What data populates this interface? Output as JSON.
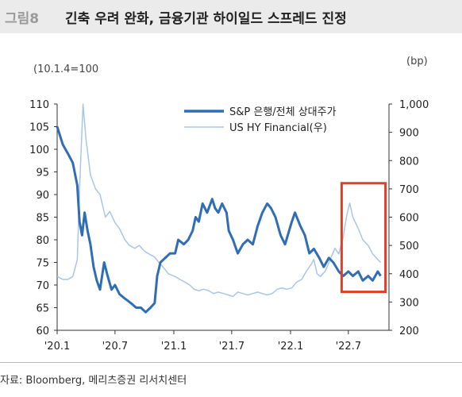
{
  "header": {
    "figure_no": "그림8",
    "title": "긴축 우려 완화, 금융기관 하이일드 스프레드 진정"
  },
  "units": {
    "left": "(10.1.4=100",
    "right": "(bp)"
  },
  "source": "자료: Bloomberg, 메리츠증권 리서치센터",
  "colors": {
    "primary": "#2f6db5",
    "secondary": "#a8c6e8",
    "highlight": "#e0402a"
  },
  "chart_data": {
    "type": "line",
    "x_ticks": [
      "'20.1",
      "'20.7",
      "'21.1",
      "'21.7",
      "'22.1",
      "'22.7"
    ],
    "y_left": {
      "ylim": [
        60,
        110
      ],
      "ticks": [
        "60",
        "65",
        "70",
        "75",
        "80",
        "85",
        "90",
        "95",
        "100",
        "105",
        "110"
      ]
    },
    "y_right": {
      "ylim": [
        200,
        1000
      ],
      "ticks": [
        "200",
        "300",
        "400",
        "500",
        "600",
        "700",
        "800",
        "900",
        "1,000"
      ]
    },
    "legend_position": "top-center",
    "series": [
      {
        "name": "S&P 은행/전체 상대주가",
        "axis": "left",
        "points": [
          [
            "2020-01-02",
            105
          ],
          [
            "2020-01-20",
            101
          ],
          [
            "2020-02-05",
            99
          ],
          [
            "2020-02-20",
            97
          ],
          [
            "2020-03-05",
            92
          ],
          [
            "2020-03-12",
            84
          ],
          [
            "2020-03-20",
            81
          ],
          [
            "2020-03-28",
            86
          ],
          [
            "2020-04-06",
            82
          ],
          [
            "2020-04-15",
            79
          ],
          [
            "2020-04-25",
            74
          ],
          [
            "2020-05-05",
            71
          ],
          [
            "2020-05-15",
            69
          ],
          [
            "2020-05-28",
            75
          ],
          [
            "2020-06-08",
            72
          ],
          [
            "2020-06-20",
            69
          ],
          [
            "2020-07-01",
            70
          ],
          [
            "2020-07-15",
            68
          ],
          [
            "2020-08-01",
            67
          ],
          [
            "2020-08-20",
            66
          ],
          [
            "2020-09-05",
            65
          ],
          [
            "2020-09-20",
            65
          ],
          [
            "2020-10-05",
            64
          ],
          [
            "2020-10-20",
            65
          ],
          [
            "2020-11-02",
            66
          ],
          [
            "2020-11-10",
            72
          ],
          [
            "2020-11-20",
            75
          ],
          [
            "2020-12-05",
            76
          ],
          [
            "2020-12-20",
            77
          ],
          [
            "2021-01-05",
            77
          ],
          [
            "2021-01-15",
            80
          ],
          [
            "2021-02-01",
            79
          ],
          [
            "2021-02-15",
            80
          ],
          [
            "2021-03-01",
            82
          ],
          [
            "2021-03-10",
            85
          ],
          [
            "2021-03-20",
            84
          ],
          [
            "2021-04-01",
            88
          ],
          [
            "2021-04-15",
            86
          ],
          [
            "2021-05-01",
            89
          ],
          [
            "2021-05-10",
            87
          ],
          [
            "2021-05-20",
            86
          ],
          [
            "2021-06-01",
            88
          ],
          [
            "2021-06-15",
            86
          ],
          [
            "2021-06-22",
            82
          ],
          [
            "2021-07-05",
            80
          ],
          [
            "2021-07-20",
            77
          ],
          [
            "2021-08-05",
            79
          ],
          [
            "2021-08-20",
            80
          ],
          [
            "2021-09-05",
            79
          ],
          [
            "2021-09-20",
            83
          ],
          [
            "2021-10-05",
            86
          ],
          [
            "2021-10-20",
            88
          ],
          [
            "2021-11-01",
            87
          ],
          [
            "2021-11-15",
            85
          ],
          [
            "2021-12-01",
            81
          ],
          [
            "2021-12-15",
            79
          ],
          [
            "2022-01-05",
            84
          ],
          [
            "2022-01-15",
            86
          ],
          [
            "2022-02-01",
            83
          ],
          [
            "2022-02-15",
            81
          ],
          [
            "2022-03-01",
            77
          ],
          [
            "2022-03-15",
            78
          ],
          [
            "2022-04-01",
            76
          ],
          [
            "2022-04-15",
            74
          ],
          [
            "2022-05-01",
            76
          ],
          [
            "2022-05-15",
            75
          ],
          [
            "2022-06-01",
            73
          ],
          [
            "2022-06-15",
            72
          ],
          [
            "2022-07-01",
            73
          ],
          [
            "2022-07-15",
            72
          ],
          [
            "2022-08-01",
            73
          ],
          [
            "2022-08-15",
            71
          ],
          [
            "2022-09-01",
            72
          ],
          [
            "2022-09-15",
            71
          ],
          [
            "2022-10-01",
            73
          ],
          [
            "2022-10-10",
            72
          ]
        ]
      },
      {
        "name": "US HY Financial(우)",
        "axis": "right",
        "points": [
          [
            "2020-01-02",
            390
          ],
          [
            "2020-01-20",
            380
          ],
          [
            "2020-02-05",
            380
          ],
          [
            "2020-02-20",
            390
          ],
          [
            "2020-03-05",
            450
          ],
          [
            "2020-03-12",
            700
          ],
          [
            "2020-03-23",
            1000
          ],
          [
            "2020-04-01",
            880
          ],
          [
            "2020-04-15",
            750
          ],
          [
            "2020-05-01",
            700
          ],
          [
            "2020-05-15",
            680
          ],
          [
            "2020-06-01",
            600
          ],
          [
            "2020-06-15",
            620
          ],
          [
            "2020-07-01",
            580
          ],
          [
            "2020-07-15",
            560
          ],
          [
            "2020-08-01",
            520
          ],
          [
            "2020-08-15",
            500
          ],
          [
            "2020-09-01",
            490
          ],
          [
            "2020-09-15",
            500
          ],
          [
            "2020-10-01",
            480
          ],
          [
            "2020-10-15",
            470
          ],
          [
            "2020-11-01",
            460
          ],
          [
            "2020-11-15",
            440
          ],
          [
            "2020-12-01",
            420
          ],
          [
            "2020-12-15",
            400
          ],
          [
            "2021-01-05",
            390
          ],
          [
            "2021-01-20",
            380
          ],
          [
            "2021-02-05",
            370
          ],
          [
            "2021-02-20",
            360
          ],
          [
            "2021-03-05",
            345
          ],
          [
            "2021-03-20",
            340
          ],
          [
            "2021-04-05",
            345
          ],
          [
            "2021-04-20",
            340
          ],
          [
            "2021-05-05",
            330
          ],
          [
            "2021-05-20",
            335
          ],
          [
            "2021-06-05",
            330
          ],
          [
            "2021-06-20",
            325
          ],
          [
            "2021-07-05",
            320
          ],
          [
            "2021-07-20",
            335
          ],
          [
            "2021-08-05",
            330
          ],
          [
            "2021-08-20",
            325
          ],
          [
            "2021-09-05",
            330
          ],
          [
            "2021-09-20",
            335
          ],
          [
            "2021-10-05",
            330
          ],
          [
            "2021-10-20",
            325
          ],
          [
            "2021-11-05",
            330
          ],
          [
            "2021-11-20",
            345
          ],
          [
            "2021-12-05",
            350
          ],
          [
            "2021-12-20",
            345
          ],
          [
            "2022-01-05",
            350
          ],
          [
            "2022-01-20",
            370
          ],
          [
            "2022-02-05",
            380
          ],
          [
            "2022-02-20",
            410
          ],
          [
            "2022-03-05",
            430
          ],
          [
            "2022-03-15",
            450
          ],
          [
            "2022-03-25",
            400
          ],
          [
            "2022-04-05",
            390
          ],
          [
            "2022-04-20",
            410
          ],
          [
            "2022-05-05",
            450
          ],
          [
            "2022-05-20",
            490
          ],
          [
            "2022-06-01",
            470
          ],
          [
            "2022-06-15",
            530
          ],
          [
            "2022-06-25",
            600
          ],
          [
            "2022-07-05",
            650
          ],
          [
            "2022-07-15",
            600
          ],
          [
            "2022-08-01",
            560
          ],
          [
            "2022-08-15",
            520
          ],
          [
            "2022-09-01",
            500
          ],
          [
            "2022-09-15",
            470
          ],
          [
            "2022-10-01",
            450
          ],
          [
            "2022-10-10",
            440
          ]
        ]
      }
    ],
    "highlight_box": {
      "x_start": "2022-06-10",
      "x_end": "2022-10-25",
      "y_left_top": 92.5,
      "y_left_bottom": 68.5
    }
  }
}
